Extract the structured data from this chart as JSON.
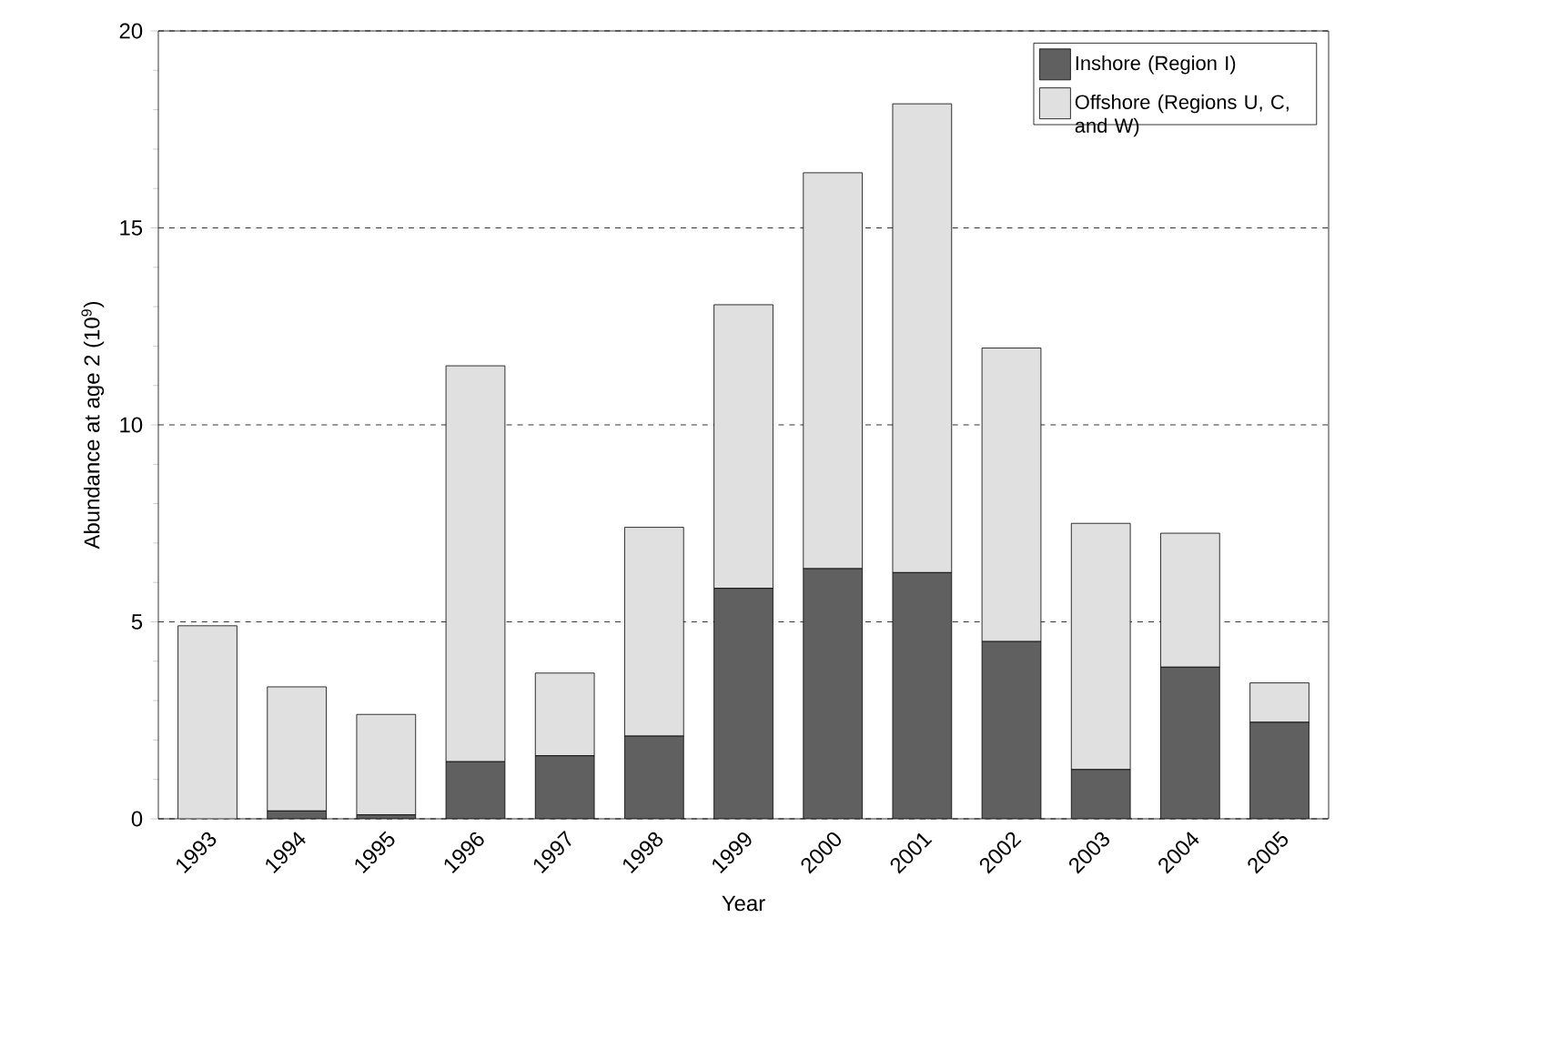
{
  "chart_data": {
    "type": "bar",
    "stacked": true,
    "xlabel": "Year",
    "ylabel": "Abundance at age 2 (10$^{9}$)",
    "categories": [
      "1993",
      "1994",
      "1995",
      "1996",
      "1997",
      "1998",
      "1999",
      "2000",
      "2001",
      "2002",
      "2003",
      "2004",
      "2005"
    ],
    "series": [
      {
        "name": "Inshore (Region I)",
        "color": "#606060",
        "values": [
          0,
          0.2,
          0.1,
          1.45,
          1.6,
          2.1,
          5.85,
          6.35,
          6.25,
          4.5,
          1.25,
          3.85,
          2.45
        ]
      },
      {
        "name": "Offshore (Regions U, C, and W)",
        "color": "#e0e0e0",
        "values": [
          4.9,
          3.15,
          2.55,
          10.05,
          2.1,
          5.3,
          7.2,
          10.05,
          11.9,
          7.45,
          6.25,
          3.4,
          1.0
        ]
      }
    ],
    "ylim": [
      0,
      20
    ],
    "yticks": [
      0,
      5,
      10,
      15,
      20
    ],
    "grid": "y",
    "legend": "top right"
  }
}
